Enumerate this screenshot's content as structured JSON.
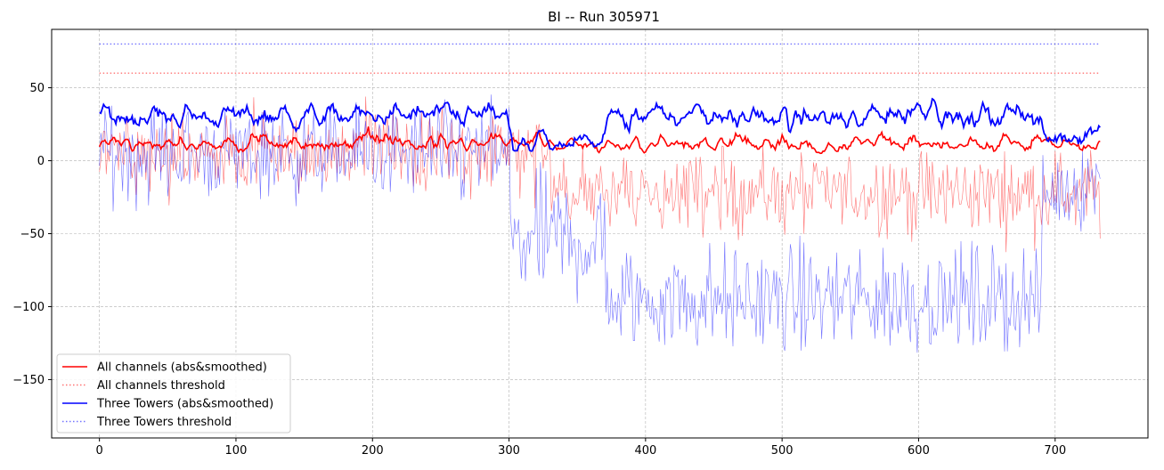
{
  "chart_data": {
    "type": "line",
    "title": "BI -- Run 305971",
    "xlabel": "",
    "ylabel": "",
    "xlim": [
      -35,
      768
    ],
    "ylim": [
      -190,
      90
    ],
    "xticks": [
      0,
      100,
      200,
      300,
      400,
      500,
      600,
      700
    ],
    "yticks": [
      50,
      0,
      -50,
      -100,
      -150
    ],
    "grid": true,
    "legend_position": "lower-left",
    "series": [
      {
        "name": "All channels (abs&smoothed)",
        "kind": "smoothed",
        "color": "#ff0000",
        "style": "solid"
      },
      {
        "name": "All channels threshold",
        "kind": "threshold",
        "color": "#ff0000",
        "style": "dotted",
        "value": 60
      },
      {
        "name": "Three Towers (abs&smoothed)",
        "kind": "smoothed",
        "color": "#0000ff",
        "style": "solid"
      },
      {
        "name": "Three Towers threshold",
        "kind": "threshold",
        "color": "#0000ff",
        "style": "dotted",
        "value": 80
      }
    ],
    "raw_series": [
      {
        "name_ref": "All channels",
        "color": "#ff0000",
        "note_segments": [
          [
            0,
            330,
            5,
            14
          ],
          [
            330,
            734,
            -22,
            14
          ]
        ]
      },
      {
        "name_ref": "Three Towers",
        "color": "#0000ff",
        "note_segments": [
          [
            0,
            300,
            5,
            16
          ],
          [
            300,
            370,
            -55,
            22
          ],
          [
            370,
            690,
            -95,
            18
          ],
          [
            690,
            734,
            -25,
            14
          ]
        ]
      }
    ],
    "x_range": [
      0,
      733
    ]
  }
}
